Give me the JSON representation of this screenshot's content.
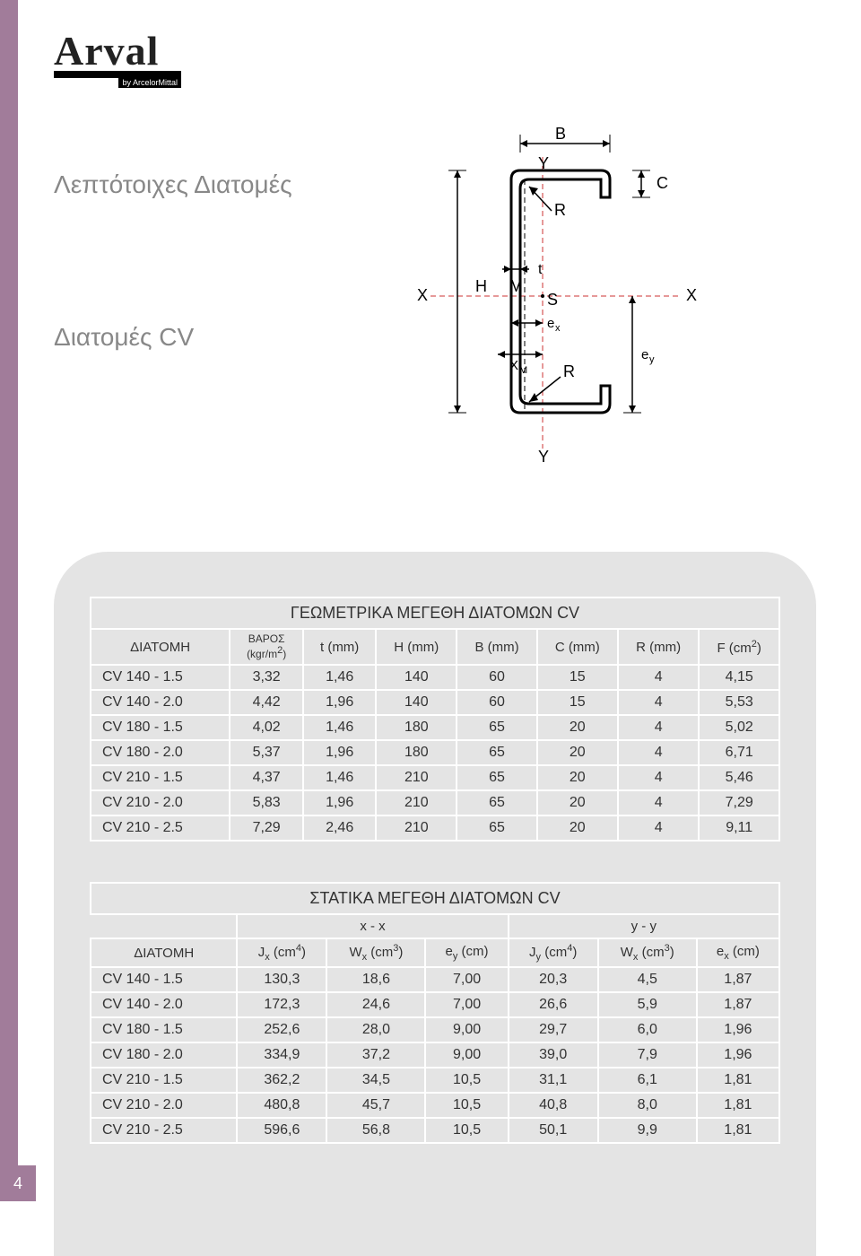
{
  "logo": {
    "main": "Arval",
    "sub": "by ArcelorMittal"
  },
  "heading1": "Λεπτότοιχες Διατομές",
  "heading2": "Διατομές CV",
  "page_number": "4",
  "colors": {
    "accent": "#a17c9a",
    "panel_bg": "#e4e4e4",
    "text_gray": "#888888",
    "border": "#ffffff",
    "diagram_red": "#cc3333"
  },
  "diagram": {
    "labels": [
      "B",
      "Y",
      "C",
      "R",
      "t",
      "H",
      "M",
      "S",
      "X",
      "eₓ",
      "Xₘ",
      "e_y",
      "R",
      "Y"
    ]
  },
  "table1": {
    "title": "ΓΕΩΜΕΤΡΙΚΑ ΜΕΓΕΘΗ ΔΙΑΤΟΜΩΝ CV",
    "columns": [
      "ΔΙΑΤΟΜΗ",
      "ΒΑΡΟΣ (kgr/m²)",
      "t (mm)",
      "H (mm)",
      "B (mm)",
      "C (mm)",
      "R (mm)",
      "F (cm²)"
    ],
    "rows": [
      [
        "CV 140 - 1.5",
        "3,32",
        "1,46",
        "140",
        "60",
        "15",
        "4",
        "4,15"
      ],
      [
        "CV 140 - 2.0",
        "4,42",
        "1,96",
        "140",
        "60",
        "15",
        "4",
        "5,53"
      ],
      [
        "CV 180 - 1.5",
        "4,02",
        "1,46",
        "180",
        "65",
        "20",
        "4",
        "5,02"
      ],
      [
        "CV 180 - 2.0",
        "5,37",
        "1,96",
        "180",
        "65",
        "20",
        "4",
        "6,71"
      ],
      [
        "CV 210 - 1.5",
        "4,37",
        "1,46",
        "210",
        "65",
        "20",
        "4",
        "5,46"
      ],
      [
        "CV 210 - 2.0",
        "5,83",
        "1,96",
        "210",
        "65",
        "20",
        "4",
        "7,29"
      ],
      [
        "CV 210 - 2.5",
        "7,29",
        "2,46",
        "210",
        "65",
        "20",
        "4",
        "9,11"
      ]
    ]
  },
  "table2": {
    "title": "ΣΤΑΤΙΚΑ ΜΕΓΕΘΗ ΔΙΑΤΟΜΩΝ CV",
    "axis_xx": "x - x",
    "axis_yy": "y - y",
    "columns": [
      "ΔΙΑΤΟΜΗ",
      "Jₓ (cm⁴)",
      "Wₓ (cm³)",
      "e_y (cm)",
      "J_y (cm⁴)",
      "Wₓ (cm³)",
      "eₓ (cm)"
    ],
    "rows": [
      [
        "CV 140 - 1.5",
        "130,3",
        "18,6",
        "7,00",
        "20,3",
        "4,5",
        "1,87"
      ],
      [
        "CV 140 - 2.0",
        "172,3",
        "24,6",
        "7,00",
        "26,6",
        "5,9",
        "1,87"
      ],
      [
        "CV 180 - 1.5",
        "252,6",
        "28,0",
        "9,00",
        "29,7",
        "6,0",
        "1,96"
      ],
      [
        "CV 180 - 2.0",
        "334,9",
        "37,2",
        "9,00",
        "39,0",
        "7,9",
        "1,96"
      ],
      [
        "CV 210 - 1.5",
        "362,2",
        "34,5",
        "10,5",
        "31,1",
        "6,1",
        "1,81"
      ],
      [
        "CV 210 - 2.0",
        "480,8",
        "45,7",
        "10,5",
        "40,8",
        "8,0",
        "1,81"
      ],
      [
        "CV 210 - 2.5",
        "596,6",
        "56,8",
        "10,5",
        "50,1",
        "9,9",
        "1,81"
      ]
    ]
  }
}
